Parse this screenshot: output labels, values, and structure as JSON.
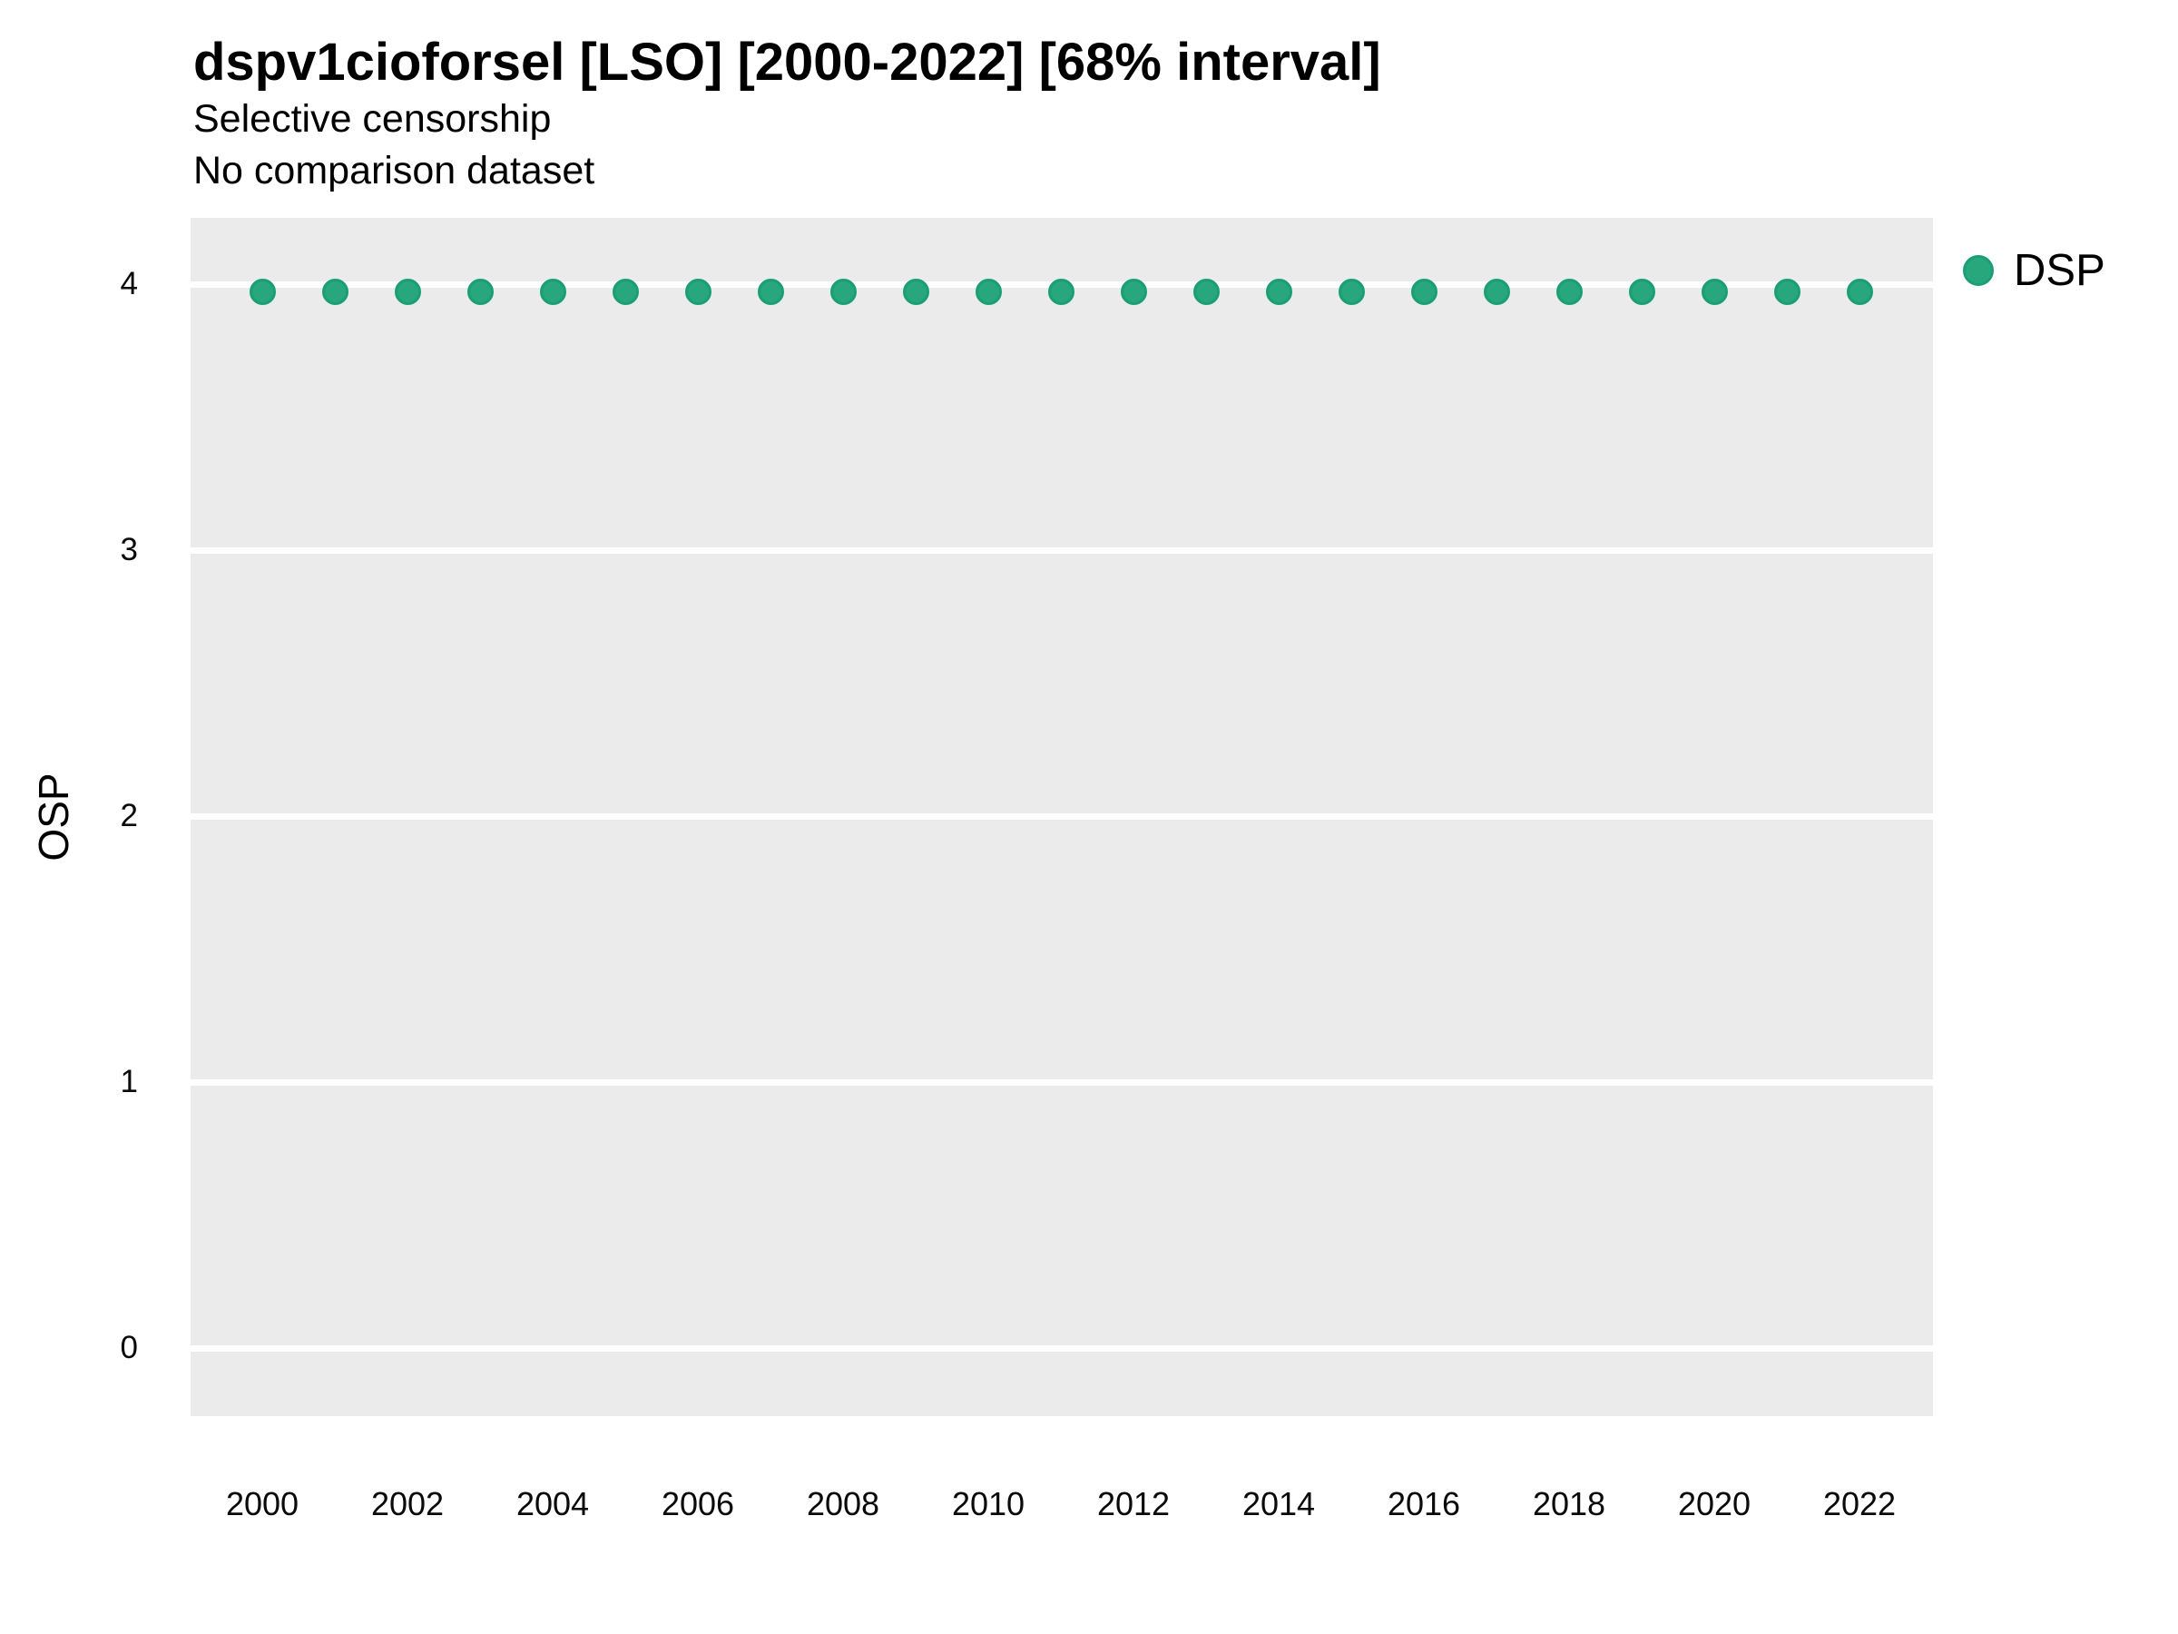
{
  "header": {
    "title": "dspv1cioforsel [LSO] [2000-2022] [68% interval]",
    "subtitle_line1": "Selective censorship",
    "subtitle_line2": "No comparison dataset"
  },
  "legend": {
    "label": "DSP"
  },
  "y_axis": {
    "label": "OSP",
    "ticks": [
      4,
      3,
      2,
      1,
      0
    ]
  },
  "x_axis": {
    "ticks": [
      2000,
      2002,
      2004,
      2006,
      2008,
      2010,
      2012,
      2014,
      2016,
      2018,
      2020,
      2022
    ]
  },
  "colors": {
    "point_fill": "#29A77C",
    "point_border": "#1B9E77",
    "panel_background": "#EBEBEB",
    "gridline": "#FFFFFF",
    "text": "#000000"
  },
  "chart_data": {
    "type": "scatter",
    "title": "dspv1cioforsel [LSO] [2000-2022] [68% interval]",
    "subtitle": [
      "Selective censorship",
      "No comparison dataset"
    ],
    "xlabel": "",
    "ylabel": "OSP",
    "series": [
      {
        "name": "DSP",
        "x": [
          2000,
          2001,
          2002,
          2003,
          2004,
          2005,
          2006,
          2007,
          2008,
          2009,
          2010,
          2011,
          2012,
          2013,
          2014,
          2015,
          2016,
          2017,
          2018,
          2019,
          2020,
          2021,
          2022
        ],
        "y": [
          3.97,
          3.97,
          3.97,
          3.97,
          3.97,
          3.97,
          3.97,
          3.97,
          3.97,
          3.97,
          3.97,
          3.97,
          3.97,
          3.97,
          3.97,
          3.97,
          3.97,
          3.97,
          3.97,
          3.97,
          3.97,
          3.97,
          3.97
        ]
      }
    ],
    "xlim": [
      1999,
      2023
    ],
    "ylim": [
      -0.26,
      4.25
    ],
    "x_tick_labels": [
      "2000",
      "2002",
      "2004",
      "2006",
      "2008",
      "2010",
      "2012",
      "2014",
      "2016",
      "2018",
      "2020",
      "2022"
    ],
    "y_tick_labels": [
      "0",
      "1",
      "2",
      "3",
      "4"
    ],
    "grid": "horizontal major gridlines only, white on gray panel",
    "legend_position": "right side, near top",
    "point_shape": "circle",
    "point_color": "#1B9E77"
  }
}
